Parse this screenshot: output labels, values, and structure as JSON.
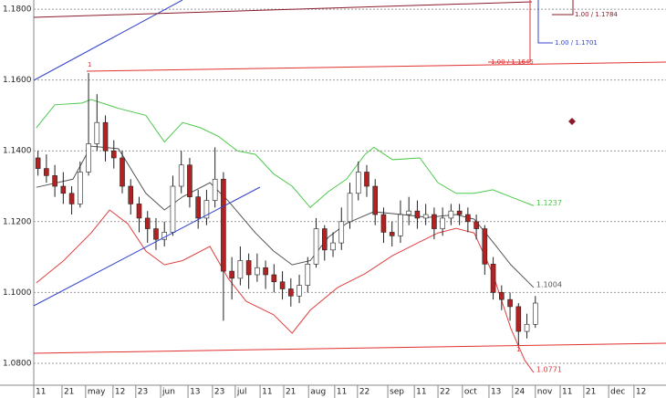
{
  "chart_data": {
    "type": "candlestick",
    "xlim": [
      0,
      150
    ],
    "ylim": [
      1.0738,
      1.1826
    ],
    "grid": true,
    "yticks": [
      {
        "value": 1.18,
        "label": "1.1800"
      },
      {
        "value": 1.16,
        "label": "1.1600"
      },
      {
        "value": 1.14,
        "label": "1.1400"
      },
      {
        "value": 1.12,
        "label": "1.1200"
      },
      {
        "value": 1.1,
        "label": "1.1000"
      },
      {
        "value": 1.08,
        "label": "1.0800"
      }
    ],
    "xticks": [
      {
        "value": 0,
        "label": "11"
      },
      {
        "value": 6.7,
        "label": "21"
      },
      {
        "value": 12.3,
        "label": "may"
      },
      {
        "value": 18.8,
        "label": "12"
      },
      {
        "value": 24.2,
        "label": "23"
      },
      {
        "value": 30.1,
        "label": "jun"
      },
      {
        "value": 36.6,
        "label": "13"
      },
      {
        "value": 42.4,
        "label": "23"
      },
      {
        "value": 47.8,
        "label": "jul"
      },
      {
        "value": 53.7,
        "label": "11"
      },
      {
        "value": 59.3,
        "label": "21"
      },
      {
        "value": 65.2,
        "label": "aug"
      },
      {
        "value": 71.4,
        "label": "11"
      },
      {
        "value": 76.8,
        "label": "22"
      },
      {
        "value": 84,
        "label": "sep"
      },
      {
        "value": 90.3,
        "label": "11"
      },
      {
        "value": 95.9,
        "label": "22"
      },
      {
        "value": 101.7,
        "label": "oct"
      },
      {
        "value": 108,
        "label": "13"
      },
      {
        "value": 113.6,
        "label": "24"
      },
      {
        "value": 119,
        "label": "nov"
      },
      {
        "value": 124.9,
        "label": "11"
      },
      {
        "value": 130.5,
        "label": "21"
      },
      {
        "value": 136.4,
        "label": "dec"
      },
      {
        "value": 142.4,
        "label": "12"
      }
    ],
    "candles": {
      "up_color": "#ffffff",
      "down_color": "#b22222",
      "x": [
        1,
        3,
        5,
        7,
        9,
        11,
        13,
        15,
        17,
        19,
        21,
        23,
        25,
        27,
        29,
        31,
        33,
        35,
        37,
        39,
        41,
        43,
        45,
        47,
        49,
        51,
        53,
        55,
        57,
        59,
        61,
        63,
        65,
        67,
        69,
        71,
        73,
        75,
        77,
        79,
        81,
        83,
        85,
        87,
        89,
        91,
        93,
        95,
        97,
        99,
        101,
        103,
        105,
        107,
        109,
        111,
        113,
        115,
        117,
        119
      ],
      "open": [
        1.138,
        1.135,
        1.133,
        1.13,
        1.128,
        1.125,
        1.134,
        1.142,
        1.148,
        1.14,
        1.138,
        1.13,
        1.125,
        1.121,
        1.118,
        1.115,
        1.117,
        1.13,
        1.136,
        1.127,
        1.121,
        1.126,
        1.132,
        1.106,
        1.104,
        1.109,
        1.105,
        1.107,
        1.105,
        1.103,
        1.101,
        1.099,
        1.102,
        1.108,
        1.118,
        1.112,
        1.114,
        1.12,
        1.128,
        1.134,
        1.13,
        1.122,
        1.117,
        1.116,
        1.122,
        1.123,
        1.121,
        1.122,
        1.118,
        1.121,
        1.123,
        1.122,
        1.12,
        1.118,
        1.108,
        1.1,
        1.098,
        1.096,
        1.089,
        1.091
      ],
      "high": [
        1.14,
        1.139,
        1.136,
        1.134,
        1.13,
        1.137,
        1.162,
        1.156,
        1.15,
        1.143,
        1.14,
        1.132,
        1.127,
        1.123,
        1.121,
        1.12,
        1.133,
        1.14,
        1.138,
        1.129,
        1.129,
        1.141,
        1.134,
        1.11,
        1.113,
        1.111,
        1.111,
        1.109,
        1.108,
        1.106,
        1.104,
        1.105,
        1.11,
        1.121,
        1.119,
        1.117,
        1.124,
        1.131,
        1.137,
        1.136,
        1.132,
        1.124,
        1.12,
        1.126,
        1.127,
        1.126,
        1.125,
        1.124,
        1.124,
        1.125,
        1.125,
        1.124,
        1.122,
        1.119,
        1.11,
        1.102,
        1.1,
        1.097,
        1.094,
        1.099
      ],
      "low": [
        1.133,
        1.131,
        1.127,
        1.125,
        1.122,
        1.124,
        1.133,
        1.14,
        1.137,
        1.135,
        1.128,
        1.122,
        1.117,
        1.114,
        1.112,
        1.113,
        1.116,
        1.128,
        1.124,
        1.118,
        1.119,
        1.124,
        1.092,
        1.098,
        1.102,
        1.101,
        1.103,
        1.101,
        1.1,
        1.098,
        1.096,
        1.097,
        1.1,
        1.107,
        1.109,
        1.11,
        1.112,
        1.118,
        1.126,
        1.127,
        1.119,
        1.114,
        1.113,
        1.114,
        1.119,
        1.118,
        1.119,
        1.115,
        1.116,
        1.119,
        1.119,
        1.117,
        1.115,
        1.105,
        1.098,
        1.095,
        1.092,
        1.085,
        1.087,
        1.09
      ],
      "close": [
        1.135,
        1.133,
        1.13,
        1.128,
        1.125,
        1.134,
        1.142,
        1.148,
        1.14,
        1.138,
        1.13,
        1.125,
        1.121,
        1.118,
        1.115,
        1.117,
        1.13,
        1.136,
        1.127,
        1.121,
        1.126,
        1.132,
        1.106,
        1.104,
        1.109,
        1.105,
        1.107,
        1.105,
        1.103,
        1.101,
        1.099,
        1.102,
        1.108,
        1.118,
        1.112,
        1.114,
        1.12,
        1.128,
        1.134,
        1.13,
        1.122,
        1.117,
        1.116,
        1.122,
        1.123,
        1.121,
        1.122,
        1.118,
        1.121,
        1.123,
        1.122,
        1.12,
        1.118,
        1.108,
        1.1,
        1.098,
        1.096,
        1.089,
        1.091,
        1.097
      ]
    },
    "series": [
      {
        "color": "#4cc94c",
        "end_label": "1.1237",
        "x": [
          0.6,
          5,
          11.5,
          13.6,
          20.1,
          26.6,
          31,
          35.3,
          39.6,
          43.9,
          48.3,
          52.6,
          56.9,
          61.3,
          65.6,
          69.9,
          74.2,
          78.6,
          80.7,
          85.1,
          91.6,
          95.9,
          100.2,
          104.5,
          108.9,
          113.2,
          118.6
        ],
        "values": [
          1.1465,
          1.153,
          1.1535,
          1.1545,
          1.152,
          1.15,
          1.1425,
          1.148,
          1.1465,
          1.144,
          1.14,
          1.139,
          1.1335,
          1.13,
          1.124,
          1.1285,
          1.132,
          1.139,
          1.141,
          1.1375,
          1.138,
          1.131,
          1.128,
          1.128,
          1.129,
          1.127,
          1.1245
        ]
      },
      {
        "color": "#555555",
        "end_label": "1.1004",
        "x": [
          0.6,
          9.3,
          13.6,
          20.1,
          26.6,
          31,
          35.3,
          41.8,
          46.1,
          52.6,
          56.9,
          61.3,
          65.6,
          69.9,
          74.2,
          80.7,
          87.2,
          93.7,
          100.2,
          104.5,
          108.9,
          113.2,
          118.6
        ],
        "values": [
          1.1297,
          1.132,
          1.1413,
          1.1406,
          1.128,
          1.1233,
          1.127,
          1.131,
          1.1259,
          1.1168,
          1.1117,
          1.1078,
          1.109,
          1.1156,
          1.1195,
          1.1228,
          1.122,
          1.1212,
          1.122,
          1.1207,
          1.1143,
          1.1078,
          1.1014
        ]
      },
      {
        "color": "#e04040",
        "end_label": "1.0771",
        "x": [
          0.6,
          7.1,
          13.6,
          18,
          22.3,
          26.6,
          31,
          35.3,
          41.8,
          46.1,
          50.4,
          56.9,
          61.3,
          65.6,
          72.1,
          78.6,
          85.1,
          91.6,
          95.9,
          100.2,
          104.5,
          108.9,
          113.2,
          116.5,
          118.6
        ],
        "values": [
          1.1027,
          1.109,
          1.1168,
          1.1233,
          1.1194,
          1.1117,
          1.1078,
          1.109,
          1.113,
          1.104,
          1.0975,
          1.0937,
          1.0885,
          1.095,
          1.1014,
          1.1053,
          1.1104,
          1.1143,
          1.1168,
          1.1181,
          1.1168,
          1.1053,
          1.0898,
          1.0808,
          1.0774
        ]
      }
    ],
    "annotations": [
      "1.00 / 1.1784",
      "1.00 / 1.1701",
      "1.00 / 1.1645",
      "1",
      "1"
    ]
  }
}
